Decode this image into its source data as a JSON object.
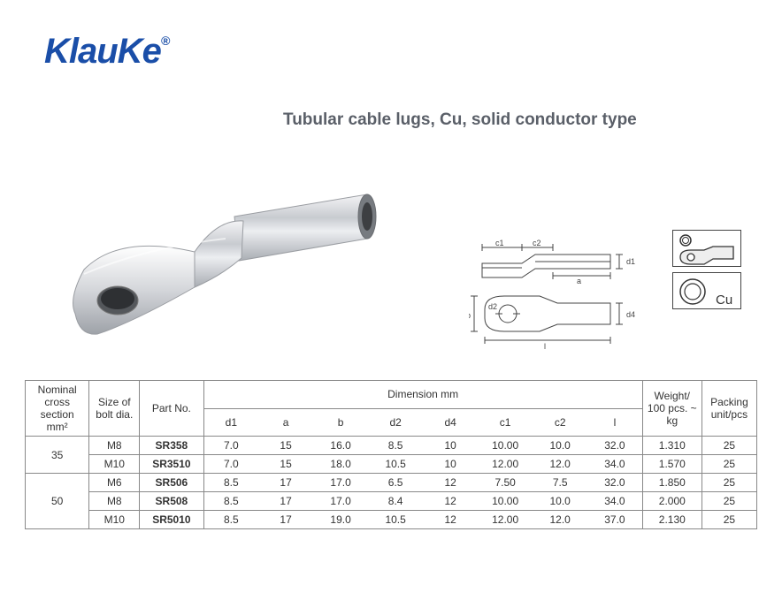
{
  "brand": {
    "name": "KlauKe",
    "color": "#1a4ea8"
  },
  "title": {
    "text": "Tubular cable lugs, Cu, solid conductor type",
    "color": "#5a5f68"
  },
  "icon_labels": {
    "cu": "Cu"
  },
  "table": {
    "headers": {
      "nominal": "Nominal cross section mm²",
      "bolt": "Size of bolt dia.",
      "part": "Part No.",
      "dimension": "Dimension mm",
      "d1": "d1",
      "a": "a",
      "b": "b",
      "d2": "d2",
      "d4": "d4",
      "c1": "c1",
      "c2": "c2",
      "l": "l",
      "weight": "Weight/ 100 pcs. ~ kg",
      "packing": "Packing unit/pcs"
    },
    "groups": [
      {
        "nominal": "35",
        "rows": [
          {
            "bolt": "M8",
            "part": "SR358",
            "d1": "7.0",
            "a": "15",
            "b": "16.0",
            "d2": "8.5",
            "d4": "10",
            "c1": "10.00",
            "c2": "10.0",
            "l": "32.0",
            "weight": "1.310",
            "pack": "25"
          },
          {
            "bolt": "M10",
            "part": "SR3510",
            "d1": "7.0",
            "a": "15",
            "b": "18.0",
            "d2": "10.5",
            "d4": "10",
            "c1": "12.00",
            "c2": "12.0",
            "l": "34.0",
            "weight": "1.570",
            "pack": "25"
          }
        ]
      },
      {
        "nominal": "50",
        "rows": [
          {
            "bolt": "M6",
            "part": "SR506",
            "d1": "8.5",
            "a": "17",
            "b": "17.0",
            "d2": "6.5",
            "d4": "12",
            "c1": "7.50",
            "c2": "7.5",
            "l": "32.0",
            "weight": "1.850",
            "pack": "25"
          },
          {
            "bolt": "M8",
            "part": "SR508",
            "d1": "8.5",
            "a": "17",
            "b": "17.0",
            "d2": "8.4",
            "d4": "12",
            "c1": "10.00",
            "c2": "10.0",
            "l": "34.0",
            "weight": "2.000",
            "pack": "25"
          },
          {
            "bolt": "M10",
            "part": "SR5010",
            "d1": "8.5",
            "a": "17",
            "b": "19.0",
            "d2": "10.5",
            "d4": "12",
            "c1": "12.00",
            "c2": "12.0",
            "l": "37.0",
            "weight": "2.130",
            "pack": "25"
          }
        ]
      }
    ]
  },
  "diagram_labels": {
    "c1": "c1",
    "c2": "c2",
    "a": "a",
    "b": "b",
    "d1": "d1",
    "d2": "d2",
    "d4": "d4",
    "l": "l"
  },
  "colors": {
    "header_text": "#333333",
    "rule": "#888888",
    "bg": "#ffffff"
  }
}
